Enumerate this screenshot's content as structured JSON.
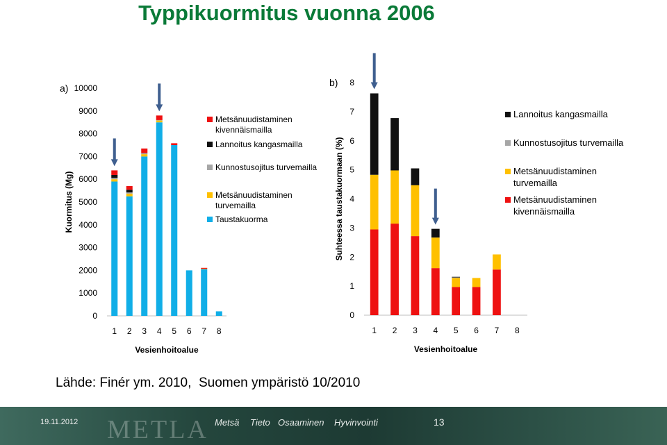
{
  "slide": {
    "title": "Typpikuormitus vuonna 2006",
    "source": "Lähde: Finér ym. 2010,  Suomen ympäristö 10/2010"
  },
  "footer": {
    "date": "19.11.2012",
    "logo": "METLA",
    "tags": [
      "Metsä",
      "Tieto",
      "Osaaminen",
      "Hyvinvointi"
    ],
    "page_number": "13"
  },
  "colors": {
    "metsanuudistaminen_kivennaismailla": "#ee1111",
    "lannoitus_kangasmailla": "#111111",
    "kunnostusojitus_turvemailla": "#a6a6a6",
    "metsanuudistaminen_turvemailla": "#ffc000",
    "taustakuorma": "#11aee7",
    "arrow": "#3f5f8f",
    "title": "#0a7a38"
  },
  "chart_data": [
    {
      "type": "bar",
      "stacked": true,
      "panel_label": "a)",
      "title": "",
      "xlabel": "Vesienhoitoalue",
      "ylabel": "Kuormitus (Mg)",
      "ylim": [
        0,
        10000
      ],
      "yticks": [
        "0",
        "1000",
        "2000",
        "3000",
        "4000",
        "5000",
        "6000",
        "7000",
        "8000",
        "9000",
        "10000"
      ],
      "categories": [
        "1",
        "2",
        "3",
        "4",
        "5",
        "6",
        "7",
        "8"
      ],
      "arrows_at": [
        "1",
        "4"
      ],
      "series": [
        {
          "name": "Taustakuorma",
          "color_key": "taustakuorma",
          "values": [
            5900,
            5250,
            7000,
            8500,
            7500,
            2000,
            2050,
            200
          ]
        },
        {
          "name": "Metsänuudistaminen turvemailla",
          "color_key": "metsanuudistaminen_turvemailla",
          "values": [
            100,
            120,
            100,
            80,
            0,
            0,
            20,
            0
          ]
        },
        {
          "name": "Kunnostusojitus turvemailla",
          "color_key": "kunnostusojitus_turvemailla",
          "values": [
            60,
            50,
            50,
            20,
            0,
            0,
            0,
            0
          ]
        },
        {
          "name": "Lannoitus kangasmailla",
          "color_key": "lannoitus_kangasmailla",
          "values": [
            130,
            120,
            0,
            0,
            0,
            0,
            0,
            0
          ]
        },
        {
          "name": "Metsänuudistaminen kivennäismailla",
          "color_key": "metsanuudistaminen_kivennaismailla",
          "values": [
            200,
            160,
            200,
            200,
            80,
            0,
            40,
            0
          ]
        }
      ],
      "legend": [
        {
          "label": [
            "Metsänuudistaminen",
            "kivennäismailla"
          ],
          "color_key": "metsanuudistaminen_kivennaismailla"
        },
        {
          "label": [
            "Lannoitus kangasmailla"
          ],
          "color_key": "lannoitus_kangasmailla"
        },
        {
          "label": [
            "Kunnostusojitus turvemailla"
          ],
          "color_key": "kunnostusojitus_turvemailla"
        },
        {
          "label": [
            "Metsänuudistaminen",
            "turvemailla"
          ],
          "color_key": "metsanuudistaminen_turvemailla"
        },
        {
          "label": [
            "Taustakuorma"
          ],
          "color_key": "taustakuorma"
        }
      ]
    },
    {
      "type": "bar",
      "stacked": true,
      "panel_label": "b)",
      "title": "",
      "xlabel": "Vesienhoitoalue",
      "ylabel": "Suhteessa taustakuormaan (%)",
      "ylim": [
        0,
        8
      ],
      "yticks": [
        "0",
        "1",
        "2",
        "3",
        "4",
        "5",
        "6",
        "7",
        "8"
      ],
      "categories": [
        "1",
        "2",
        "3",
        "4",
        "5",
        "6",
        "7",
        "8"
      ],
      "arrows_at": [
        "1",
        "4"
      ],
      "series": [
        {
          "name": "Metsänuudistaminen kivennäismailla",
          "color_key": "metsanuudistaminen_kivennaismailla",
          "values": [
            2.95,
            3.15,
            2.72,
            1.62,
            0.97,
            0.97,
            1.57,
            0
          ]
        },
        {
          "name": "Metsänuudistaminen turvemailla",
          "color_key": "metsanuudistaminen_turvemailla",
          "values": [
            1.88,
            1.83,
            1.75,
            1.05,
            0.31,
            0.31,
            0.52,
            0
          ]
        },
        {
          "name": "Kunnostusojitus turvemailla",
          "color_key": "kunnostusojitus_turvemailla",
          "values": [
            0,
            0,
            0,
            0,
            0.02,
            0,
            0,
            0
          ]
        },
        {
          "name": "Lannoitus kangasmailla",
          "color_key": "lannoitus_kangasmailla",
          "values": [
            2.8,
            1.8,
            0.58,
            0.3,
            0.02,
            0,
            0,
            0
          ]
        }
      ],
      "legend": [
        {
          "label": [
            "Lannoitus kangasmailla"
          ],
          "color_key": "lannoitus_kangasmailla"
        },
        {
          "label": [
            "Kunnostusojitus turvemailla"
          ],
          "color_key": "kunnostusojitus_turvemailla"
        },
        {
          "label": [
            "Metsänuudistaminen",
            "turvemailla"
          ],
          "color_key": "metsanuudistaminen_turvemailla"
        },
        {
          "label": [
            "Metsänuudistaminen",
            "kivennäismailla"
          ],
          "color_key": "metsanuudistaminen_kivennaismailla"
        }
      ]
    }
  ]
}
